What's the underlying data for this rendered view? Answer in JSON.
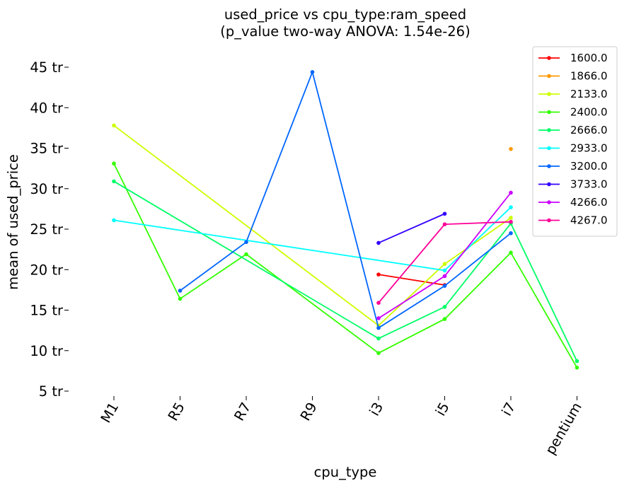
{
  "chart_data": {
    "type": "line",
    "title": "used_price vs cpu_type:ram_speed",
    "subtitle": "(p_value two-way ANOVA: 1.54e-26)",
    "xlabel": "cpu_type",
    "ylabel": "mean of used_price",
    "categories": [
      "M1",
      "R5",
      "R7",
      "R9",
      "i3",
      "i5",
      "i7",
      "pentium"
    ],
    "ylim": [
      4,
      47
    ],
    "yticks": [
      5,
      10,
      15,
      20,
      25,
      30,
      35,
      40,
      45
    ],
    "yticklabels": [
      "5 tr",
      "10 tr",
      "15 tr",
      "20 tr",
      "25 tr",
      "30 tr",
      "35 tr",
      "40 tr",
      "45 tr"
    ],
    "grid": false,
    "legend_position": "top-right",
    "series": [
      {
        "name": "1600.0",
        "color": "#ff0000",
        "values": [
          null,
          null,
          null,
          null,
          19.4,
          18.1,
          null,
          null
        ]
      },
      {
        "name": "1866.0",
        "color": "#ff9900",
        "values": [
          null,
          null,
          null,
          null,
          null,
          null,
          34.9,
          null
        ]
      },
      {
        "name": "2133.0",
        "color": "#ccff00",
        "values": [
          37.8,
          null,
          null,
          null,
          13.1,
          20.7,
          26.4,
          null
        ]
      },
      {
        "name": "2400.0",
        "color": "#33ff00",
        "values": [
          33.1,
          16.4,
          21.9,
          null,
          9.7,
          13.9,
          22.1,
          7.9
        ]
      },
      {
        "name": "2666.0",
        "color": "#00ff66",
        "values": [
          30.9,
          null,
          null,
          null,
          11.5,
          15.4,
          25.7,
          8.7
        ]
      },
      {
        "name": "2933.0",
        "color": "#00ffff",
        "values": [
          26.1,
          null,
          null,
          null,
          null,
          19.9,
          27.7,
          null
        ]
      },
      {
        "name": "3200.0",
        "color": "#0066ff",
        "values": [
          null,
          17.4,
          23.4,
          44.4,
          12.8,
          18.0,
          24.5,
          null
        ]
      },
      {
        "name": "3733.0",
        "color": "#3300ff",
        "values": [
          null,
          null,
          null,
          null,
          23.3,
          26.9,
          null,
          null
        ]
      },
      {
        "name": "4266.0",
        "color": "#cc00ff",
        "values": [
          null,
          null,
          null,
          null,
          14.0,
          19.2,
          29.5,
          null
        ]
      },
      {
        "name": "4267.0",
        "color": "#ff0099",
        "values": [
          null,
          null,
          null,
          null,
          15.9,
          25.6,
          25.9,
          null
        ]
      }
    ]
  }
}
